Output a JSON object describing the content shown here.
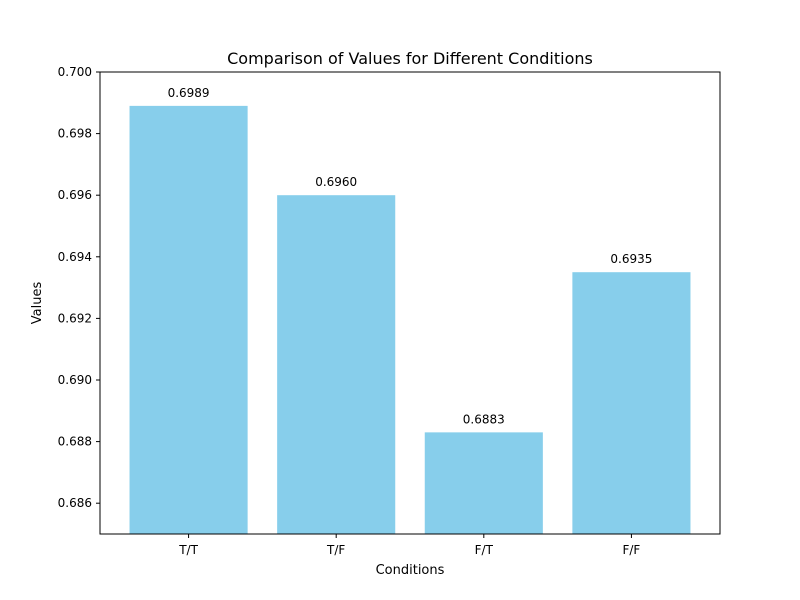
{
  "chart_data": {
    "type": "bar",
    "title": "Comparison of Values for Different Conditions",
    "xlabel": "Conditions",
    "ylabel": "Values",
    "categories": [
      "T/T",
      "T/F",
      "F/T",
      "F/F"
    ],
    "values": [
      0.6989,
      0.696,
      0.6883,
      0.6935
    ],
    "data_labels": [
      "0.6989",
      "0.6960",
      "0.6883",
      "0.6935"
    ],
    "ylim": [
      0.685,
      0.7
    ],
    "yticks": [
      0.686,
      0.688,
      0.69,
      0.692,
      0.694,
      0.696,
      0.698,
      0.7
    ],
    "ytick_labels": [
      "0.686",
      "0.688",
      "0.690",
      "0.692",
      "0.694",
      "0.696",
      "0.698",
      "0.700"
    ],
    "bar_color": "#87ceeb",
    "grid": false,
    "legend": "none"
  }
}
